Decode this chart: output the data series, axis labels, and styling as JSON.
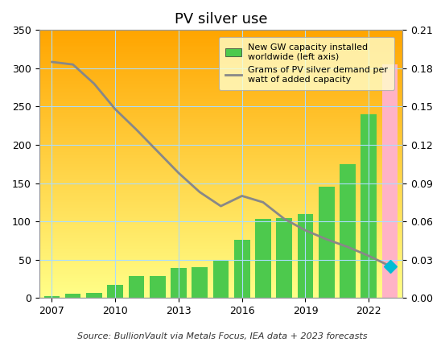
{
  "title": "PV silver use",
  "source_text": "Source: BullionVault via Metals Focus, IEA data + 2023 forecasts",
  "years": [
    2007,
    2008,
    2009,
    2010,
    2011,
    2012,
    2013,
    2014,
    2015,
    2016,
    2017,
    2018,
    2019,
    2020,
    2021,
    2022,
    2023
  ],
  "gw_installed": [
    2,
    6,
    7,
    17,
    29,
    29,
    39,
    40,
    50,
    76,
    103,
    104,
    110,
    145,
    175,
    240,
    305
  ],
  "gw_colors": [
    "#4dc94d",
    "#4dc94d",
    "#4dc94d",
    "#4dc94d",
    "#4dc94d",
    "#4dc94d",
    "#4dc94d",
    "#4dc94d",
    "#4dc94d",
    "#4dc94d",
    "#4dc94d",
    "#4dc94d",
    "#4dc94d",
    "#4dc94d",
    "#4dc94d",
    "#4dc94d",
    "#ffb3c6"
  ],
  "grams_per_watt": [
    0.185,
    0.183,
    0.168,
    0.148,
    0.132,
    0.115,
    0.098,
    0.083,
    0.072,
    0.08,
    0.075,
    0.062,
    0.053,
    0.046,
    0.04,
    0.033,
    0.025
  ],
  "grams_line_color": "#888888",
  "grams_marker_year_idx": 16,
  "grams_marker_color": "#00bcd4",
  "grams_marker_style": "D",
  "left_ylim": [
    0,
    350
  ],
  "right_ylim": [
    0,
    0.21
  ],
  "left_yticks": [
    0,
    50,
    100,
    150,
    200,
    250,
    300,
    350
  ],
  "right_yticks": [
    0.0,
    0.03,
    0.06,
    0.09,
    0.12,
    0.15,
    0.18,
    0.21
  ],
  "bg_color_top": "#FFA500",
  "bg_color_bottom": "#FFFF88",
  "grid_color": "#aaddff",
  "legend_bg": "#FFFFCC",
  "legend_bar_label": "New GW capacity installed\nworldwide (left axis)",
  "legend_line_label": "Grams of PV silver demand per\nwatt of added capacity",
  "title_fontsize": 13,
  "source_fontsize": 8,
  "xtick_positions": [
    2007,
    2010,
    2013,
    2016,
    2019,
    2022
  ]
}
